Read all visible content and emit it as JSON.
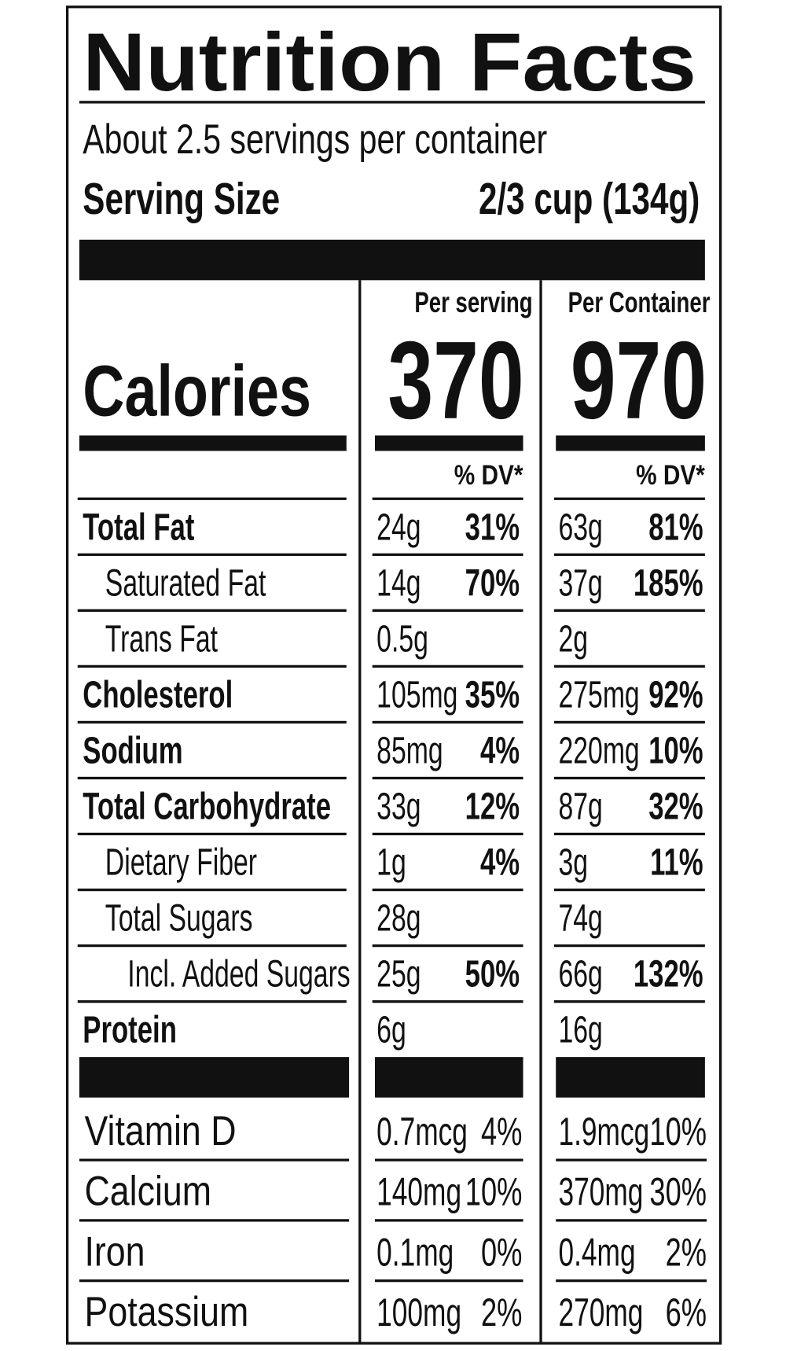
{
  "header": {
    "title": "Nutrition Facts",
    "servings": "About 2.5 servings per container",
    "serving_size_label": "Serving Size",
    "serving_size": "2/3 cup (134g)"
  },
  "columns": {
    "per_serving": "Per serving",
    "per_container": "Per Container",
    "dv": "% DV*"
  },
  "calories": {
    "label": "Calories",
    "per_serving": "370",
    "per_container": "970"
  },
  "nutrients": [
    {
      "label": "Total Fat",
      "serving_amount": "24g",
      "serving_dv": "31%",
      "container_amount": "63g",
      "container_dv": "81%"
    },
    {
      "label": "Saturated Fat",
      "serving_amount": "14g",
      "serving_dv": "70%",
      "container_amount": "37g",
      "container_dv": "185%"
    },
    {
      "label": "Trans Fat",
      "serving_amount": "0.5g",
      "container_amount": "2g"
    },
    {
      "label": "Cholesterol",
      "serving_amount": "105mg",
      "serving_dv": "35%",
      "container_amount": "275mg",
      "container_dv": "92%"
    },
    {
      "label": "Sodium",
      "serving_amount": "85mg",
      "serving_dv": "4%",
      "container_amount": "220mg",
      "container_dv": "10%"
    },
    {
      "label": "Total Carbohydrate",
      "serving_amount": "33g",
      "serving_dv": "12%",
      "container_amount": "87g",
      "container_dv": "32%"
    },
    {
      "label": "Dietary Fiber",
      "serving_amount": "1g",
      "serving_dv": "4%",
      "container_amount": "3g",
      "container_dv": "11%"
    },
    {
      "label": "Total Sugars",
      "serving_amount": "28g",
      "container_amount": "74g"
    },
    {
      "label": "Incl. Added Sugars",
      "serving_amount": "25g",
      "serving_dv": "50%",
      "container_amount": "66g",
      "container_dv": "132%"
    },
    {
      "label": "Protein",
      "serving_amount": "6g",
      "container_amount": "16g"
    }
  ],
  "vitamins": [
    {
      "label": "Vitamin D",
      "serving_amount": "0.7mcg",
      "serving_dv": "4%",
      "container_amount": "1.9mcg",
      "container_dv": "10%"
    },
    {
      "label": "Calcium",
      "serving_amount": "140mg",
      "serving_dv": "10%",
      "container_amount": "370mg",
      "container_dv": "30%"
    },
    {
      "label": "Iron",
      "serving_amount": "0.1mg",
      "serving_dv": "0%",
      "container_amount": "0.4mg",
      "container_dv": "2%"
    },
    {
      "label": "Potassium",
      "serving_amount": "100mg",
      "serving_dv": "2%",
      "container_amount": "270mg",
      "container_dv": "6%"
    }
  ]
}
